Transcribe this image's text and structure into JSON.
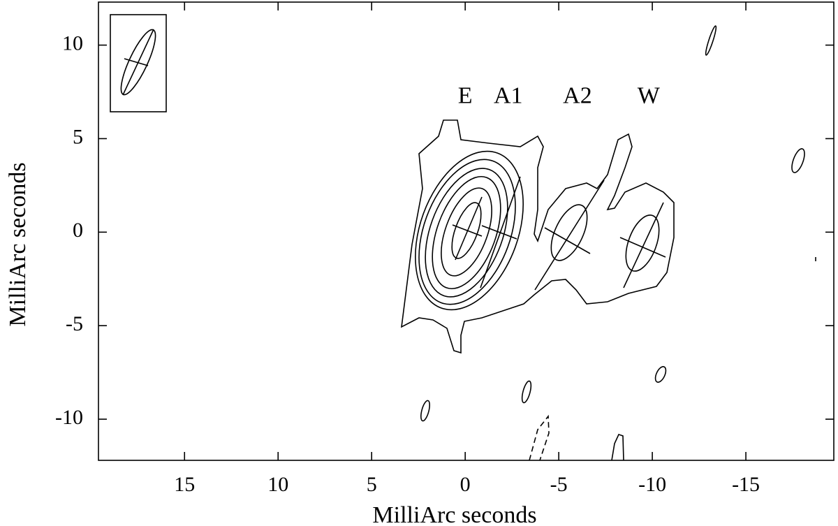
{
  "chart_data": {
    "type": "contour",
    "xlabel": "MilliArc seconds",
    "ylabel": "MilliArc seconds",
    "xlim": [
      19.6,
      -19.7
    ],
    "ylim": [
      -12.2,
      12.3
    ],
    "xticks": [
      15,
      10,
      5,
      0,
      -5,
      -10,
      -15
    ],
    "yticks": [
      10,
      5,
      0,
      -5,
      -10
    ],
    "annotations": [
      {
        "text": "E",
        "x": 0,
        "y": 6.9
      },
      {
        "text": "A1",
        "x": -2.3,
        "y": 6.9
      },
      {
        "text": "A2",
        "x": -6.0,
        "y": 6.9
      },
      {
        "text": "W",
        "x": -9.8,
        "y": 6.9
      }
    ]
  }
}
